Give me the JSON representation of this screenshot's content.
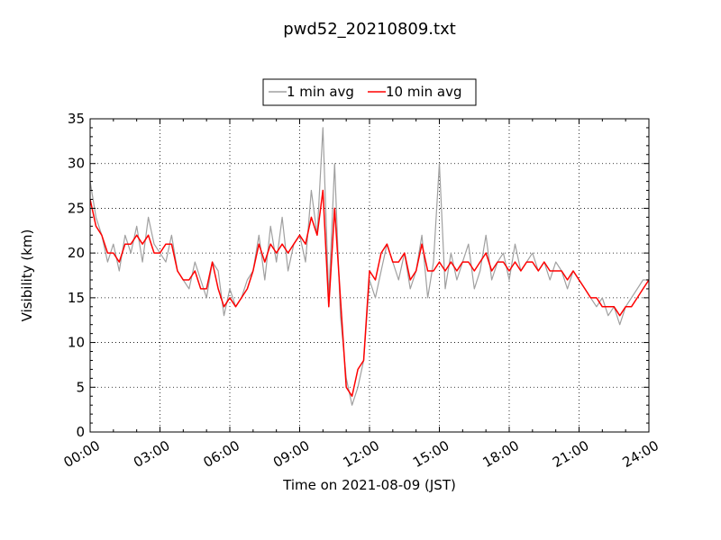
{
  "chart_data": {
    "type": "line",
    "title": "pwd52_20210809.txt",
    "xlabel": "Time on 2021-08-09 (JST)",
    "ylabel": "Visibility (km)",
    "x_ticks": [
      "00:00",
      "03:00",
      "06:00",
      "09:00",
      "12:00",
      "15:00",
      "18:00",
      "21:00",
      "24:00"
    ],
    "y_ticks": [
      "0",
      "5",
      "10",
      "15",
      "20",
      "25",
      "30",
      "35"
    ],
    "xlim": [
      "00:00",
      "24:00"
    ],
    "ylim": [
      0,
      35
    ],
    "grid": true,
    "legend_position": "top-center, above plot",
    "series": [
      {
        "name": "1 min avg",
        "color": "#a0a0a0",
        "x": [
          "00:00",
          "00:15",
          "00:30",
          "00:45",
          "01:00",
          "01:15",
          "01:30",
          "01:45",
          "02:00",
          "02:15",
          "02:30",
          "02:45",
          "03:00",
          "03:15",
          "03:30",
          "03:45",
          "04:00",
          "04:15",
          "04:30",
          "04:45",
          "05:00",
          "05:15",
          "05:30",
          "05:45",
          "06:00",
          "06:15",
          "06:30",
          "06:45",
          "07:00",
          "07:15",
          "07:30",
          "07:45",
          "08:00",
          "08:15",
          "08:30",
          "08:45",
          "09:00",
          "09:15",
          "09:30",
          "09:45",
          "10:00",
          "10:15",
          "10:30",
          "10:45",
          "11:00",
          "11:15",
          "11:30",
          "11:45",
          "12:00",
          "12:15",
          "12:30",
          "12:45",
          "13:00",
          "13:15",
          "13:30",
          "13:45",
          "14:00",
          "14:15",
          "14:30",
          "14:45",
          "15:00",
          "15:15",
          "15:30",
          "15:45",
          "16:00",
          "16:15",
          "16:30",
          "16:45",
          "17:00",
          "17:15",
          "17:30",
          "17:45",
          "18:00",
          "18:15",
          "18:30",
          "18:45",
          "19:00",
          "19:15",
          "19:30",
          "19:45",
          "20:00",
          "20:15",
          "20:30",
          "20:45",
          "21:00",
          "21:15",
          "21:30",
          "21:45",
          "22:00",
          "22:15",
          "22:30",
          "22:45",
          "23:00",
          "23:15",
          "23:30",
          "23:45",
          "24:00"
        ],
        "values": [
          28,
          24,
          22,
          19,
          21,
          18,
          22,
          20,
          23,
          19,
          24,
          21,
          20,
          19,
          22,
          18,
          17,
          16,
          19,
          17,
          15,
          19,
          18,
          13,
          16,
          14,
          15,
          17,
          18,
          22,
          17,
          23,
          19,
          24,
          18,
          21,
          22,
          19,
          27,
          22,
          34,
          15,
          30,
          13,
          6,
          3,
          5,
          8,
          17,
          15,
          18,
          21,
          19,
          17,
          20,
          16,
          18,
          22,
          15,
          19,
          30,
          16,
          20,
          17,
          19,
          21,
          16,
          18,
          22,
          17,
          19,
          20,
          17,
          21,
          18,
          19,
          20,
          18,
          19,
          17,
          19,
          18,
          16,
          18,
          17,
          16,
          15,
          14,
          15,
          13,
          14,
          12,
          14,
          15,
          16,
          17,
          17
        ]
      },
      {
        "name": "10 min avg",
        "color": "#ff0000",
        "x": [
          "00:00",
          "00:15",
          "00:30",
          "00:45",
          "01:00",
          "01:15",
          "01:30",
          "01:45",
          "02:00",
          "02:15",
          "02:30",
          "02:45",
          "03:00",
          "03:15",
          "03:30",
          "03:45",
          "04:00",
          "04:15",
          "04:30",
          "04:45",
          "05:00",
          "05:15",
          "05:30",
          "05:45",
          "06:00",
          "06:15",
          "06:30",
          "06:45",
          "07:00",
          "07:15",
          "07:30",
          "07:45",
          "08:00",
          "08:15",
          "08:30",
          "08:45",
          "09:00",
          "09:15",
          "09:30",
          "09:45",
          "10:00",
          "10:15",
          "10:30",
          "10:45",
          "11:00",
          "11:15",
          "11:30",
          "11:45",
          "12:00",
          "12:15",
          "12:30",
          "12:45",
          "13:00",
          "13:15",
          "13:30",
          "13:45",
          "14:00",
          "14:15",
          "14:30",
          "14:45",
          "15:00",
          "15:15",
          "15:30",
          "15:45",
          "16:00",
          "16:15",
          "16:30",
          "16:45",
          "17:00",
          "17:15",
          "17:30",
          "17:45",
          "18:00",
          "18:15",
          "18:30",
          "18:45",
          "19:00",
          "19:15",
          "19:30",
          "19:45",
          "20:00",
          "20:15",
          "20:30",
          "20:45",
          "21:00",
          "21:15",
          "21:30",
          "21:45",
          "22:00",
          "22:15",
          "22:30",
          "22:45",
          "23:00",
          "23:15",
          "23:30",
          "23:45",
          "24:00"
        ],
        "values": [
          26,
          23,
          22,
          20,
          20,
          19,
          21,
          21,
          22,
          21,
          22,
          20,
          20,
          21,
          21,
          18,
          17,
          17,
          18,
          16,
          16,
          19,
          16,
          14,
          15,
          14,
          15,
          16,
          18,
          21,
          19,
          21,
          20,
          21,
          20,
          21,
          22,
          21,
          24,
          22,
          27,
          14,
          25,
          15,
          5,
          4,
          7,
          8,
          18,
          17,
          20,
          21,
          19,
          19,
          20,
          17,
          18,
          21,
          18,
          18,
          19,
          18,
          19,
          18,
          19,
          19,
          18,
          19,
          20,
          18,
          19,
          19,
          18,
          19,
          18,
          19,
          19,
          18,
          19,
          18,
          18,
          18,
          17,
          18,
          17,
          16,
          15,
          15,
          14,
          14,
          14,
          13,
          14,
          14,
          15,
          16,
          17
        ]
      }
    ]
  }
}
